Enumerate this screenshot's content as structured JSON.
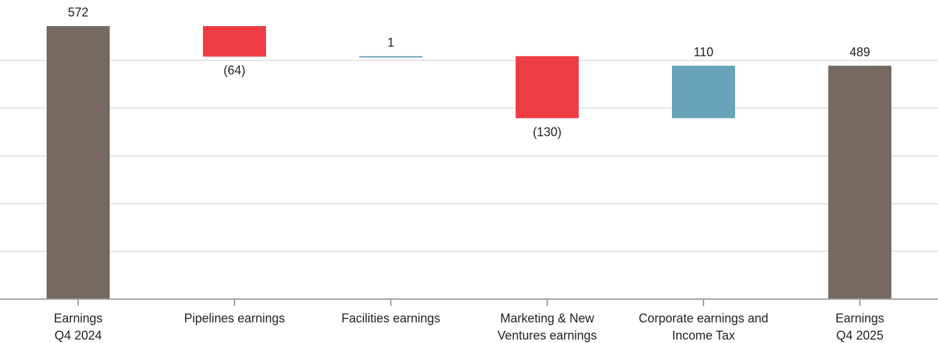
{
  "chart_data": {
    "type": "bar",
    "variant": "waterfall",
    "categories": [
      [
        "Earnings",
        "Q4 2024"
      ],
      [
        "Pipelines earnings"
      ],
      [
        "Facilities earnings"
      ],
      [
        "Marketing & New",
        "Ventures earnings"
      ],
      [
        "Corporate earnings and",
        "Income Tax"
      ],
      [
        "Earnings",
        "Q4 2025"
      ]
    ],
    "values": [
      572,
      -64,
      1,
      -130,
      110,
      489
    ],
    "value_labels": [
      "572",
      "(64)",
      "1",
      "(130)",
      "110",
      "489"
    ],
    "kinds": [
      "total",
      "delta",
      "delta",
      "delta",
      "delta",
      "total"
    ],
    "colors": {
      "total": "#756961",
      "decrease": "#ed3d43",
      "increase": "#6aa2ba",
      "grid": "#e3e3e3",
      "axis": "#a0a0a0",
      "text": "#222222"
    },
    "ylim": [
      0,
      600
    ],
    "grid": true,
    "legend": "none",
    "title": "",
    "xlabel": "",
    "ylabel": ""
  }
}
